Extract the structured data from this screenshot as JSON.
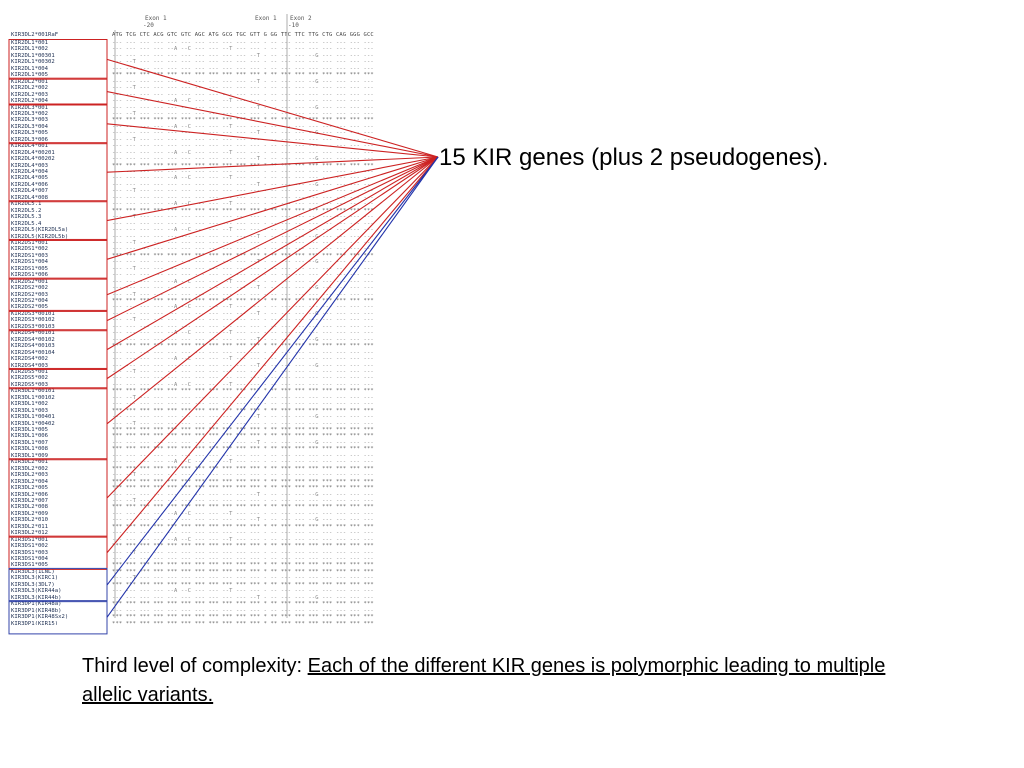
{
  "callout": {
    "text": "15 KIR genes (plus 2 pseudogenes)."
  },
  "caption": {
    "prefix": "Third level of complexity: ",
    "emphasis": "Each of the different KIR genes is polymorphic leading to multiple allelic variants."
  },
  "alignment": {
    "exon_headers": [
      {
        "label": "Exon 1",
        "sub": "-20"
      },
      {
        "label": "Exon 1",
        "sub": ""
      },
      {
        "label": "Exon 2",
        "sub": "-10"
      }
    ],
    "codons": "ATG TCG CTC ACG GTC GTC AGC ATG GCG TGC GTT G   GG TTC TTC TTG CTG CAG GGG GCC",
    "alleles": [
      "KIR2DL1*001",
      "KIR2DL1*002",
      "KIR2DL1*00301",
      "KIR2DL1*00302",
      "KIR2DL1*004",
      "KIR2DL1*005",
      "KIR2DL2*001",
      "KIR2DL2*002",
      "KIR2DL2*003",
      "KIR2DL2*004",
      "KIR2DL3*001",
      "KIR2DL3*002",
      "KIR2DL3*003",
      "KIR2DL3*004",
      "KIR2DL3*005",
      "KIR2DL3*006",
      "KIR2DL4*001",
      "KIR2DL4*00201",
      "KIR2DL4*00202",
      "KIR2DL4*003",
      "KIR2DL4*004",
      "KIR2DL4*005",
      "KIR2DL4*006",
      "KIR2DL4*007",
      "KIR2DL4*008",
      "KIR2DL5.1",
      "KIR2DL5.2",
      "KIR2DL5.3",
      "KIR2DL5.4",
      "KIR2DL5(KIR2DL5a)",
      "KIR2DL5(KIR2DL5b)",
      "KIR2DS1*001",
      "KIR2DS1*002",
      "KIR2DS1*003",
      "KIR2DS1*004",
      "KIR2DS1*005",
      "KIR2DS1*006",
      "KIR2DS2*001",
      "KIR2DS2*002",
      "KIR2DS2*003",
      "KIR2DS2*004",
      "KIR2DS2*005",
      "KIR2DS3*00101",
      "KIR2DS3*00102",
      "KIR2DS3*00103",
      "KIR2DS4*00101",
      "KIR2DS4*00102",
      "KIR2DS4*00103",
      "KIR2DS4*00104",
      "KIR2DS4*002",
      "KIR2DS4*003",
      "KIR2DS5*001",
      "KIR2DS5*002",
      "KIR2DS5*003",
      "KIR3DL1*00101",
      "KIR3DL1*00102",
      "KIR3DL1*002",
      "KIR3DL1*003",
      "KIR3DL1*00401",
      "KIR3DL1*00402",
      "KIR3DL1*005",
      "KIR3DL1*006",
      "KIR3DL1*007",
      "KIR3DL1*008",
      "KIR3DL1*009",
      "KIR3DL2*001",
      "KIR3DL2*002",
      "KIR3DL2*003",
      "KIR3DL2*004",
      "KIR3DL2*005",
      "KIR3DL2*006",
      "KIR3DL2*007",
      "KIR3DL2*008",
      "KIR3DL2*009",
      "KIR3DL2*010",
      "KIR3DL2*011",
      "KIR3DL2*012",
      "KIR3DS1*001",
      "KIR3DS1*002",
      "KIR3DS1*003",
      "KIR3DS1*004",
      "KIR3DS1*005",
      "KIR3DL3(1LNL)",
      "KIR3DL3(KIRC1)",
      "KIR3DL3(3DL7)",
      "KIR3DL3(KIR44a)",
      "KIR3DL3(KIR44b)",
      "KIR3DP1(KIR48a)",
      "KIR3DP1(KIR48b)",
      "KIR3DP1(KIR48Sx2)",
      "KIR3DP1(KIR15)",
      "KIR2DP1(KIRY)"
    ]
  },
  "colors": {
    "gene_box": "#cc2222",
    "pseudo_box": "#3344aa",
    "gene_line": "#cc2222",
    "pseudo_line": "#2233aa"
  }
}
